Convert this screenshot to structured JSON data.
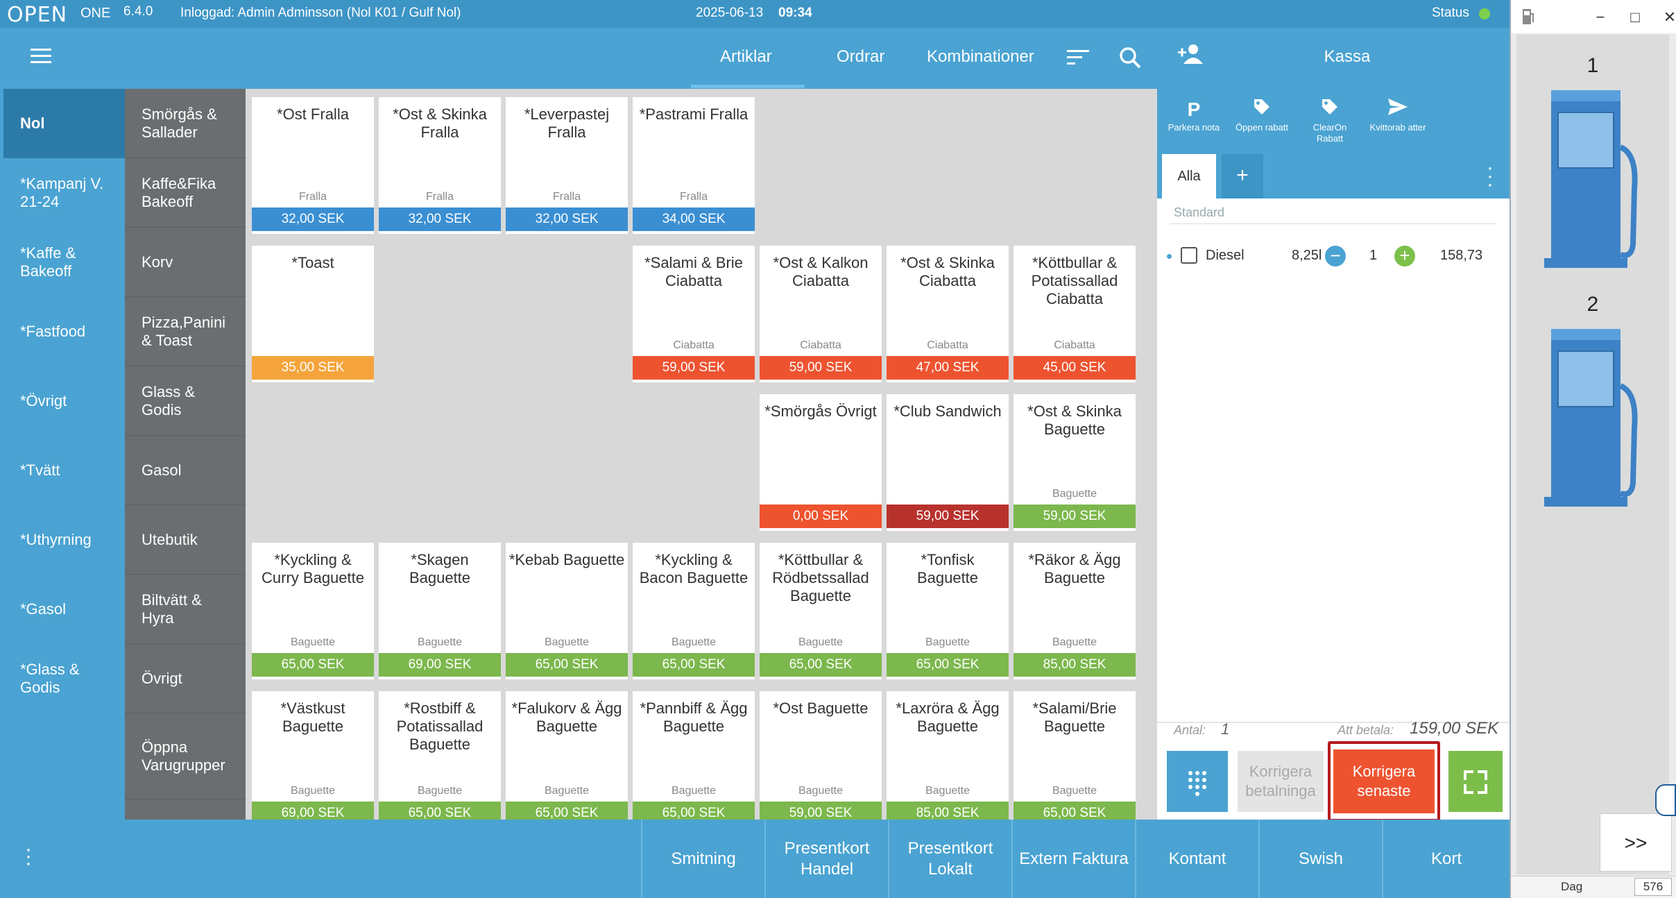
{
  "topbar": {
    "logo": "OPEN",
    "logo_suffix": "ONE",
    "version": "6.4.0",
    "login": "Inloggad: Admin Adminsson (Nol K01 / Gulf Nol)",
    "date": "2025-06-13",
    "time": "09:34",
    "status": "Status",
    "status_color": "#7ed04b"
  },
  "nav": {
    "tabs": [
      "Artiklar",
      "Ordrar",
      "Kombinationer"
    ]
  },
  "categories": [
    "Nol",
    "*Kampanj V. 21-24",
    "*Kaffe & Bakeoff",
    "*Fastfood",
    "*Övrigt",
    "*Tvätt",
    "*Uthyrning",
    "*Gasol",
    "*Glass & Godis"
  ],
  "subcategories": [
    "Smörgås & Sallader",
    "Kaffe&Fika Bakeoff",
    "Korv",
    "Pizza,Panini & Toast",
    "Glass & Godis",
    "Gasol",
    "Utebutik",
    "Biltvätt & Hyra",
    "Övrigt",
    "Öppna Varugrupper"
  ],
  "products": [
    {
      "name": "*Ost Fralla",
      "category": "Fralla",
      "price": "32,00 SEK",
      "color": "#3a8fd3"
    },
    {
      "name": "*Ost & Skinka Fralla",
      "category": "Fralla",
      "price": "32,00 SEK",
      "color": "#3a8fd3"
    },
    {
      "name": "*Leverpastej Fralla",
      "category": "Fralla",
      "price": "32,00 SEK",
      "color": "#3a8fd3"
    },
    {
      "name": "*Pastrami Fralla",
      "category": "Fralla",
      "price": "34,00 SEK",
      "color": "#3a8fd3"
    },
    {
      "name": "*Toast",
      "category": "",
      "price": "35,00 SEK",
      "color": "#f5a43c"
    },
    {
      "name": "*Salami & Brie Ciabatta",
      "category": "Ciabatta",
      "price": "59,00 SEK",
      "color": "#ee5330"
    },
    {
      "name": "*Ost & Kalkon Ciabatta",
      "category": "Ciabatta",
      "price": "59,00 SEK",
      "color": "#ee5330"
    },
    {
      "name": "*Ost & Skinka Ciabatta",
      "category": "Ciabatta",
      "price": "47,00 SEK",
      "color": "#ee5330"
    },
    {
      "name": "*Köttbullar & Potatissallad Ciabatta",
      "category": "Ciabatta",
      "price": "45,00 SEK",
      "color": "#ee5330"
    },
    {
      "name": "*Smörgås Övrigt",
      "category": "",
      "price": "0,00 SEK",
      "color": "#ee5330"
    },
    {
      "name": "*Club Sandwich",
      "category": "",
      "price": "59,00 SEK",
      "color": "#b8322d"
    },
    {
      "name": "*Ost & Skinka Baguette",
      "category": "Baguette",
      "price": "59,00 SEK",
      "color": "#7cb84d"
    },
    {
      "name": "*Kyckling & Curry Baguette",
      "category": "Baguette",
      "price": "65,00 SEK",
      "color": "#7cb84d"
    },
    {
      "name": "*Skagen Baguette",
      "category": "Baguette",
      "price": "69,00 SEK",
      "color": "#7cb84d"
    },
    {
      "name": "*Kebab Baguette",
      "category": "Baguette",
      "price": "65,00 SEK",
      "color": "#7cb84d"
    },
    {
      "name": "*Kyckling & Bacon Baguette",
      "category": "Baguette",
      "price": "65,00 SEK",
      "color": "#7cb84d"
    },
    {
      "name": "*Köttbullar & Rödbetssallad Baguette",
      "category": "Baguette",
      "price": "65,00 SEK",
      "color": "#7cb84d"
    },
    {
      "name": "*Tonfisk Baguette",
      "category": "Baguette",
      "price": "65,00 SEK",
      "color": "#7cb84d"
    },
    {
      "name": "*Räkor & Ägg Baguette",
      "category": "Baguette",
      "price": "85,00 SEK",
      "color": "#7cb84d"
    },
    {
      "name": "*Västkust Baguette",
      "category": "Baguette",
      "price": "69,00 SEK",
      "color": "#7cb84d"
    },
    {
      "name": "*Rostbiff & Potatissallad Baguette",
      "category": "Baguette",
      "price": "65,00 SEK",
      "color": "#7cb84d"
    },
    {
      "name": "*Falukorv & Ägg Baguette",
      "category": "Baguette",
      "price": "65,00 SEK",
      "color": "#7cb84d"
    },
    {
      "name": "*Pannbiff & Ägg Baguette",
      "category": "Baguette",
      "price": "65,00 SEK",
      "color": "#7cb84d"
    },
    {
      "name": "*Ost Baguette",
      "category": "Baguette",
      "price": "59,00 SEK",
      "color": "#7cb84d"
    },
    {
      "name": "*Laxröra & Ägg Baguette",
      "category": "Baguette",
      "price": "85,00 SEK",
      "color": "#7cb84d"
    },
    {
      "name": "*Salami/Brie Baguette",
      "category": "Baguette",
      "price": "65,00 SEK",
      "color": "#7cb84d"
    }
  ],
  "register": {
    "title": "Kassa",
    "actions": [
      {
        "icon": "P",
        "label": "Parkera nota"
      },
      {
        "icon": "tag-icon",
        "label": "Öppen rabatt"
      },
      {
        "icon": "tag-icon",
        "label": "ClearOn Rabatt"
      },
      {
        "icon": "send-icon",
        "label": "Kvittorab atter"
      }
    ],
    "tab_all": "Alla",
    "tab_add": "+",
    "pricelist": "Standard",
    "item": {
      "name": "Diesel",
      "quantity": "8,25l",
      "count": "1",
      "price": "158,73"
    },
    "antal_label": "Antal:",
    "antal_value": "1",
    "to_pay_label": "Att betala:",
    "to_pay_value": "159,00 SEK",
    "correct_payments": "Korrigera betalninga",
    "correct_latest": "Korrigera senaste"
  },
  "payment_buttons": [
    "Smitning",
    "Presentkort Handel",
    "Presentkort Lokalt",
    "Extern Faktura",
    "Kontant",
    "Swish",
    "Kort"
  ],
  "side_panel": {
    "pumps": [
      "1",
      "2"
    ],
    "next": ">>",
    "status_label": "Dag",
    "status_value": "576"
  }
}
